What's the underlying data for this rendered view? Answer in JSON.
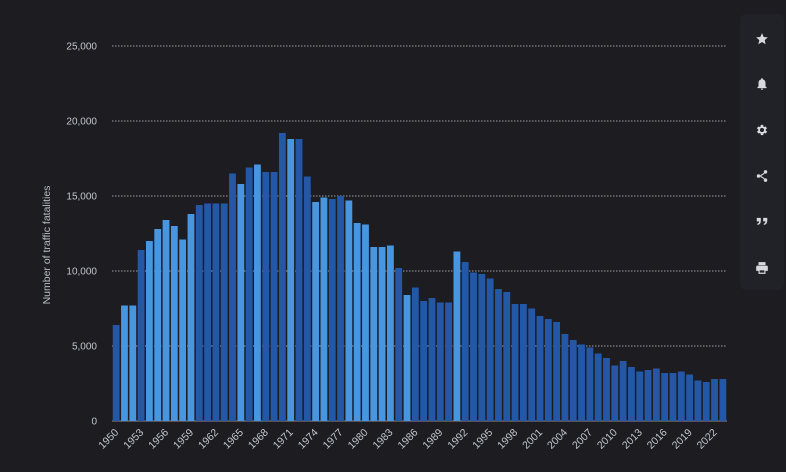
{
  "chart_data": {
    "type": "bar",
    "ylabel": "Number of traffic fatalities",
    "ylim": [
      0,
      25000
    ],
    "yticks": [
      0,
      5000,
      10000,
      15000,
      20000,
      25000
    ],
    "ytick_labels": [
      "0",
      "5,000",
      "10,000",
      "15,000",
      "20,000",
      "25,000"
    ],
    "grid": true,
    "xtick_labels": [
      "1950",
      "1953",
      "1956",
      "1959",
      "1962",
      "1965",
      "1968",
      "1971",
      "1974",
      "1977",
      "1980",
      "1983",
      "1986",
      "1989",
      "1992",
      "1995",
      "1998",
      "2001",
      "2004",
      "2007",
      "2010",
      "2013",
      "2016",
      "2019",
      "2022"
    ],
    "categories": [
      "1950",
      "1951",
      "1952",
      "1953",
      "1954",
      "1955",
      "1956",
      "1957",
      "1958",
      "1959",
      "1960",
      "1961",
      "1962",
      "1963",
      "1964",
      "1965",
      "1966",
      "1967",
      "1968",
      "1969",
      "1970",
      "1971",
      "1972",
      "1973",
      "1974",
      "1975",
      "1976",
      "1977",
      "1978",
      "1979",
      "1980",
      "1981",
      "1982",
      "1983",
      "1984",
      "1985",
      "1986",
      "1987",
      "1988",
      "1989",
      "1990",
      "1991",
      "1992",
      "1993",
      "1994",
      "1995",
      "1996",
      "1997",
      "1998",
      "1999",
      "2000",
      "2001",
      "2002",
      "2003",
      "2004",
      "2005",
      "2006",
      "2007",
      "2008",
      "2009",
      "2010",
      "2011",
      "2012",
      "2013",
      "2014",
      "2015",
      "2016",
      "2017",
      "2018",
      "2019",
      "2020",
      "2021",
      "2022",
      "2023"
    ],
    "values": [
      6400,
      7700,
      7700,
      11400,
      12000,
      12800,
      13400,
      13000,
      12100,
      13800,
      14400,
      14500,
      14500,
      14500,
      16500,
      15800,
      16900,
      17100,
      16600,
      16600,
      19200,
      18800,
      18800,
      16300,
      14600,
      14900,
      14800,
      15000,
      14700,
      13200,
      13100,
      11600,
      11600,
      11700,
      10200,
      8400,
      8900,
      8000,
      8200,
      7900,
      7900,
      11300,
      10600,
      9900,
      9800,
      9500,
      8800,
      8600,
      7800,
      7800,
      7500,
      7000,
      6800,
      6600,
      5800,
      5400,
      5100,
      4900,
      4500,
      4200,
      3700,
      4000,
      3600,
      3300,
      3400,
      3500,
      3200,
      3200,
      3300,
      3100,
      2700,
      2600,
      2800,
      2800
    ],
    "colors": {
      "bar_dark": "#2458a6",
      "bar_light": "#4896e0",
      "grid": "#c9cbd1",
      "axis": "#8a8d95",
      "tick_text": "#c3c6cc"
    }
  },
  "toolbar": {
    "icons": [
      "star-icon",
      "bell-icon",
      "gear-icon",
      "share-icon",
      "quote-icon",
      "print-icon"
    ],
    "icon_color": "#d7d9df",
    "panel_color": "#212228"
  }
}
